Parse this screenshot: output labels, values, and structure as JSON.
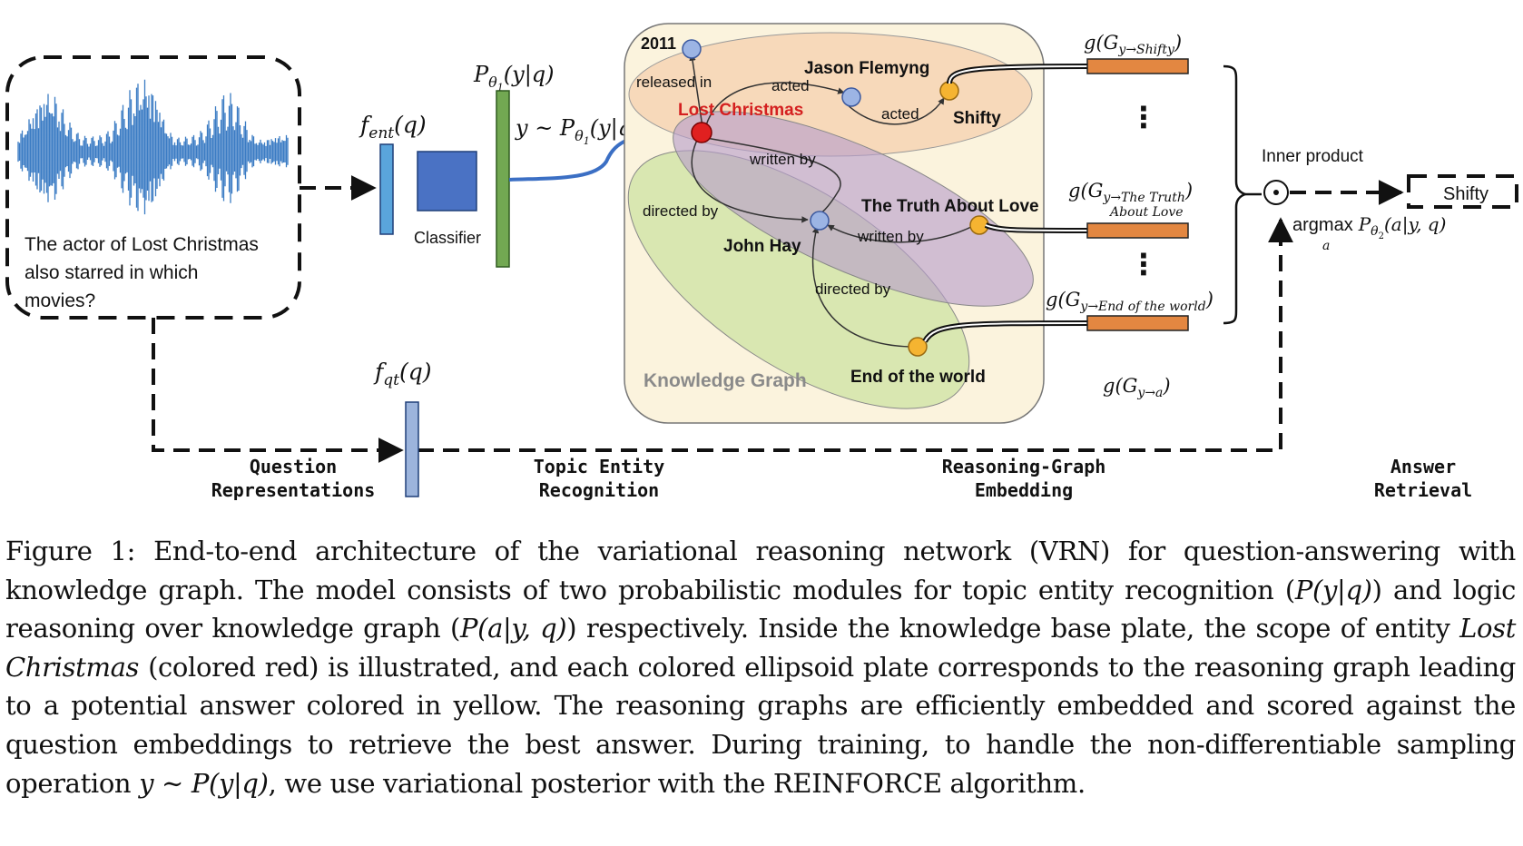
{
  "question": {
    "line1": "The actor of Lost Christmas",
    "line2": "also starred in which",
    "line3": "movies?"
  },
  "labels": {
    "f_ent": "f",
    "f_ent_sub": "ent",
    "f_ent_arg": "(q)",
    "classifier": "Classifier",
    "p_theta1": "P",
    "p_theta1_arg": "(y|q)",
    "sample_y": "y ~ P",
    "sample_arg": "(y|q)",
    "theta": "θ",
    "one": "1",
    "two": "2",
    "f_qt": "f",
    "f_qt_sub": "qt",
    "f_qt_arg": "(q)",
    "inner_product": "Inner product",
    "dot": "⊙",
    "answer": "Shifty",
    "argmax": "argmax",
    "argmax_sub": "a",
    "argmax_p": "P",
    "argmax_arg": "(a|y, q)",
    "vdots": "⋮"
  },
  "kg": {
    "title": "Knowledge Graph",
    "nodes": {
      "year": "2011",
      "lost_christmas": "Lost Christmas",
      "jason": "Jason Flemyng",
      "shifty": "Shifty",
      "truth": "The Truth About Love",
      "john": "John Hay",
      "end": "End of the world"
    },
    "edges": {
      "released_in": "released in",
      "acted1": "acted",
      "acted2": "acted",
      "written_by1": "written by",
      "written_by2": "written by",
      "directed_by1": "directed by",
      "directed_by2": "directed by"
    }
  },
  "embeddings": {
    "g_shifty": "g(G",
    "g_shifty_sub": "y→Shifty",
    "g_truth": "g(G",
    "g_truth_sub": "y→The Truth",
    "g_truth_line2": "About Love",
    "g_end": "g(G",
    "g_end_sub": "y→End of the world",
    "g_a": "g(G",
    "g_a_sub": "y→a",
    "close_paren": ")"
  },
  "stages": {
    "s1_line1": "Question",
    "s1_line2": "Representations",
    "s2_line1": "Topic Entity",
    "s2_line2": "Recognition",
    "s3_line1": "Reasoning-Graph",
    "s3_line2": "Embedding",
    "s4_line1": "Answer",
    "s4_line2": "Retrieval"
  },
  "caption": {
    "p1": "Figure 1: End-to-end architecture of the variational reasoning network (VRN) for question-answering with knowledge graph. The model consists of two probabilistic modules for topic entity recognition (",
    "m1": "P(y|q)",
    "p2": ") and logic reasoning over knowledge graph (",
    "m2": "P(a|y, q)",
    "p3": ") respectively. Inside the knowledge base plate, the scope of entity ",
    "m3": "Lost Christmas",
    "p4": " (colored red) is illustrated, and each colored ellipsoid plate corresponds to the reasoning graph leading to a potential answer colored in yellow. The reasoning graphs are efficiently embedded and scored against the question embeddings to retrieve the best answer. During training, to handle the non-differentiable sampling operation ",
    "m4": "y ∼ P(y|q)",
    "p5": ", we use variational posterior with the REINFORCE algorithm."
  },
  "colors": {
    "waveform": "#3b7cc4",
    "lost_christmas": "#e02020",
    "answer_node": "#f5b431",
    "entity_node": "#9cb4e4",
    "embedding_bar": "#e38741",
    "kg_plate": "#fbf3dd",
    "shifty_plate": "#f6d6b6",
    "truth_plate": "#b69ccc",
    "end_plate": "#cfe3a4",
    "f_ent_bar": "#5aa5dc",
    "classifier_box": "#4a72c4",
    "p_theta_bar": "#72a852",
    "f_qt_bar": "#9cb4dc"
  }
}
